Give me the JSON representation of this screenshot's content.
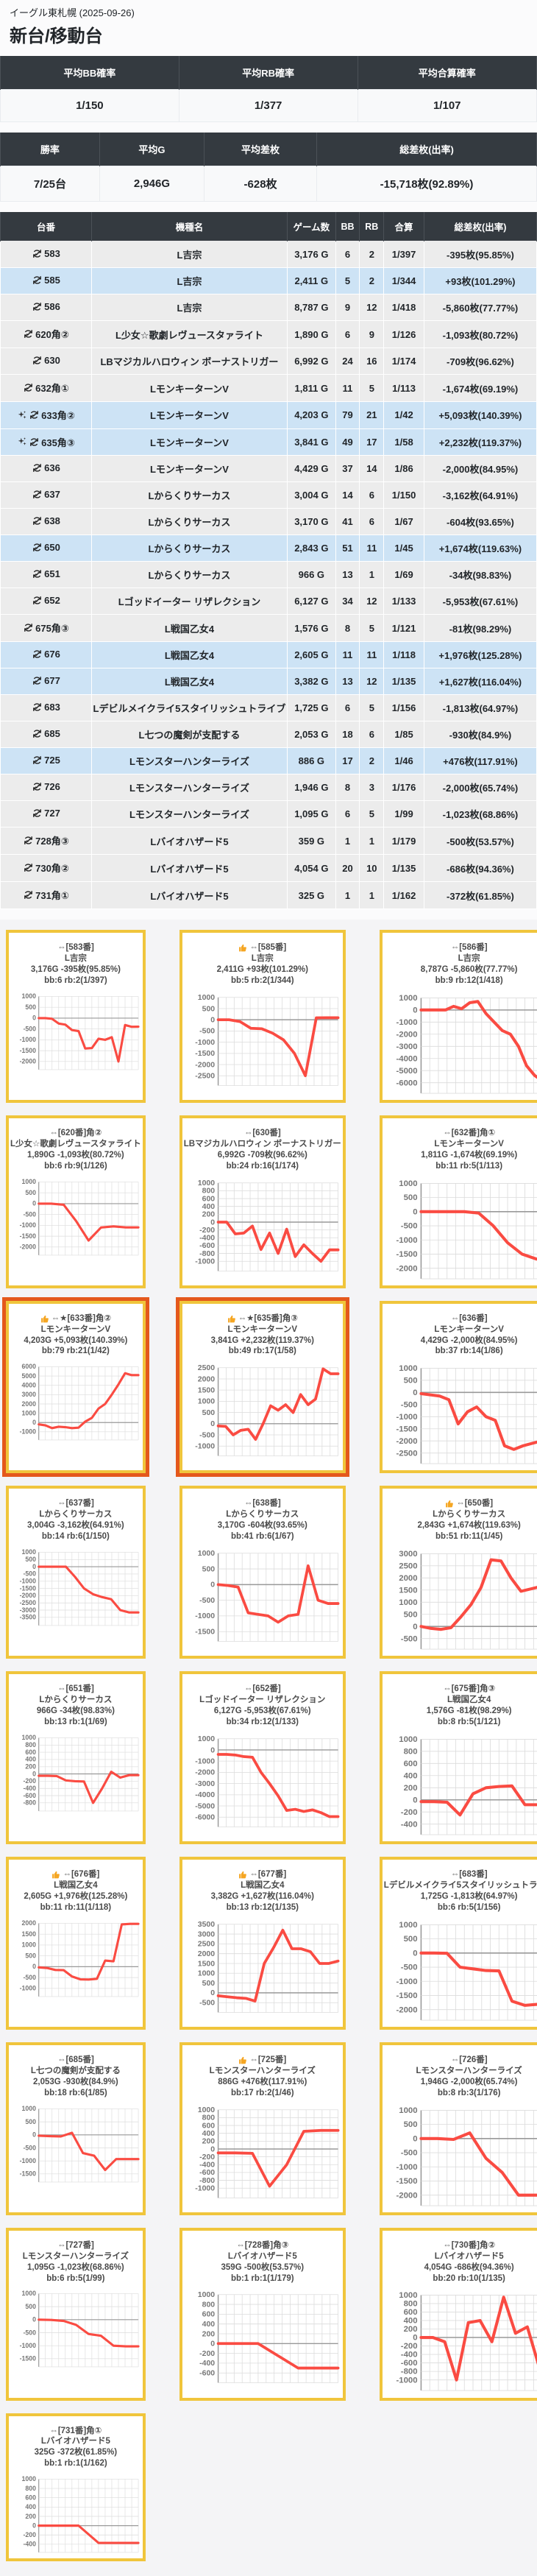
{
  "header": {
    "venue": "イーグル東札幌 (2025-09-26)",
    "title": "新台/移動台"
  },
  "icons": {
    "row_move": "refresh-arrows-icon",
    "row_sparkle": "sparkle-icon",
    "card_thumb": "thumbs-up-icon"
  },
  "colors": {
    "accent_border": "#f0c53c",
    "highlight_border": "#e4581c",
    "line": "#fa4b42",
    "header_bg": "#343a40",
    "row_positive": "#cde3f5",
    "row_negative": "#ececec"
  },
  "summary1": {
    "headers": [
      "平均BB確率",
      "平均RB確率",
      "平均合算確率"
    ],
    "values": [
      "1/150",
      "1/377",
      "1/107"
    ]
  },
  "summary2": {
    "headers": [
      "勝率",
      "平均G",
      "平均差枚",
      "総差枚(出率)"
    ],
    "values": [
      "7/25台",
      "2,946G",
      "-628枚",
      "-15,718枚(92.89%)"
    ]
  },
  "table": {
    "headers": [
      "台番",
      "機種名",
      "ゲーム数",
      "BB",
      "RB",
      "合算",
      "総差枚(出率)"
    ],
    "rows": [
      {
        "num": "583",
        "sparkle": false,
        "model": "L吉宗",
        "games": "3,176 G",
        "bb": "6",
        "rb": "2",
        "gassan": "1/397",
        "diff": "-395枚(95.85%)",
        "positive": false
      },
      {
        "num": "585",
        "sparkle": false,
        "model": "L吉宗",
        "games": "2,411 G",
        "bb": "5",
        "rb": "2",
        "gassan": "1/344",
        "diff": "+93枚(101.29%)",
        "positive": true
      },
      {
        "num": "586",
        "sparkle": false,
        "model": "L吉宗",
        "games": "8,787 G",
        "bb": "9",
        "rb": "12",
        "gassan": "1/418",
        "diff": "-5,860枚(77.77%)",
        "positive": false
      },
      {
        "num": "620角②",
        "sparkle": false,
        "model": "L少女☆歌劇レヴュースタァライト",
        "games": "1,890 G",
        "bb": "6",
        "rb": "9",
        "gassan": "1/126",
        "diff": "-1,093枚(80.72%)",
        "positive": false
      },
      {
        "num": "630",
        "sparkle": false,
        "model": "LBマジカルハロウィン ボーナストリガー",
        "games": "6,992 G",
        "bb": "24",
        "rb": "16",
        "gassan": "1/174",
        "diff": "-709枚(96.62%)",
        "positive": false
      },
      {
        "num": "632角①",
        "sparkle": false,
        "model": "LモンキーターンV",
        "games": "1,811 G",
        "bb": "11",
        "rb": "5",
        "gassan": "1/113",
        "diff": "-1,674枚(69.19%)",
        "positive": false
      },
      {
        "num": "633角②",
        "sparkle": true,
        "model": "LモンキーターンV",
        "games": "4,203 G",
        "bb": "79",
        "rb": "21",
        "gassan": "1/42",
        "diff": "+5,093枚(140.39%)",
        "positive": true
      },
      {
        "num": "635角③",
        "sparkle": true,
        "model": "LモンキーターンV",
        "games": "3,841 G",
        "bb": "49",
        "rb": "17",
        "gassan": "1/58",
        "diff": "+2,232枚(119.37%)",
        "positive": true
      },
      {
        "num": "636",
        "sparkle": false,
        "model": "LモンキーターンV",
        "games": "4,429 G",
        "bb": "37",
        "rb": "14",
        "gassan": "1/86",
        "diff": "-2,000枚(84.95%)",
        "positive": false
      },
      {
        "num": "637",
        "sparkle": false,
        "model": "Lからくりサーカス",
        "games": "3,004 G",
        "bb": "14",
        "rb": "6",
        "gassan": "1/150",
        "diff": "-3,162枚(64.91%)",
        "positive": false
      },
      {
        "num": "638",
        "sparkle": false,
        "model": "Lからくりサーカス",
        "games": "3,170 G",
        "bb": "41",
        "rb": "6",
        "gassan": "1/67",
        "diff": "-604枚(93.65%)",
        "positive": false
      },
      {
        "num": "650",
        "sparkle": false,
        "model": "Lからくりサーカス",
        "games": "2,843 G",
        "bb": "51",
        "rb": "11",
        "gassan": "1/45",
        "diff": "+1,674枚(119.63%)",
        "positive": true
      },
      {
        "num": "651",
        "sparkle": false,
        "model": "Lからくりサーカス",
        "games": "966 G",
        "bb": "13",
        "rb": "1",
        "gassan": "1/69",
        "diff": "-34枚(98.83%)",
        "positive": false
      },
      {
        "num": "652",
        "sparkle": false,
        "model": "Lゴッドイーター リザレクション",
        "games": "6,127 G",
        "bb": "34",
        "rb": "12",
        "gassan": "1/133",
        "diff": "-5,953枚(67.61%)",
        "positive": false
      },
      {
        "num": "675角③",
        "sparkle": false,
        "model": "L戦国乙女4",
        "games": "1,576 G",
        "bb": "8",
        "rb": "5",
        "gassan": "1/121",
        "diff": "-81枚(98.29%)",
        "positive": false
      },
      {
        "num": "676",
        "sparkle": false,
        "model": "L戦国乙女4",
        "games": "2,605 G",
        "bb": "11",
        "rb": "11",
        "gassan": "1/118",
        "diff": "+1,976枚(125.28%)",
        "positive": true
      },
      {
        "num": "677",
        "sparkle": false,
        "model": "L戦国乙女4",
        "games": "3,382 G",
        "bb": "13",
        "rb": "12",
        "gassan": "1/135",
        "diff": "+1,627枚(116.04%)",
        "positive": true
      },
      {
        "num": "683",
        "sparkle": false,
        "model": "Lデビルメイクライ5スタイリッシュトライブ",
        "games": "1,725 G",
        "bb": "6",
        "rb": "5",
        "gassan": "1/156",
        "diff": "-1,813枚(64.97%)",
        "positive": false
      },
      {
        "num": "685",
        "sparkle": false,
        "model": "L七つの魔剣が支配する",
        "games": "2,053 G",
        "bb": "18",
        "rb": "6",
        "gassan": "1/85",
        "diff": "-930枚(84.9%)",
        "positive": false
      },
      {
        "num": "725",
        "sparkle": false,
        "model": "Lモンスターハンターライズ",
        "games": "886 G",
        "bb": "17",
        "rb": "2",
        "gassan": "1/46",
        "diff": "+476枚(117.91%)",
        "positive": true
      },
      {
        "num": "726",
        "sparkle": false,
        "model": "Lモンスターハンターライズ",
        "games": "1,946 G",
        "bb": "8",
        "rb": "3",
        "gassan": "1/176",
        "diff": "-2,000枚(65.74%)",
        "positive": false
      },
      {
        "num": "727",
        "sparkle": false,
        "model": "Lモンスターハンターライズ",
        "games": "1,095 G",
        "bb": "6",
        "rb": "5",
        "gassan": "1/99",
        "diff": "-1,023枚(68.86%)",
        "positive": false
      },
      {
        "num": "728角③",
        "sparkle": false,
        "model": "Lバイオハザード5",
        "games": "359 G",
        "bb": "1",
        "rb": "1",
        "gassan": "1/179",
        "diff": "-500枚(53.57%)",
        "positive": false
      },
      {
        "num": "730角②",
        "sparkle": false,
        "model": "Lバイオハザード5",
        "games": "4,054 G",
        "bb": "20",
        "rb": "10",
        "gassan": "1/135",
        "diff": "-686枚(94.36%)",
        "positive": false
      },
      {
        "num": "731角①",
        "sparkle": false,
        "model": "Lバイオハザード5",
        "games": "325 G",
        "bb": "1",
        "rb": "1",
        "gassan": "1/162",
        "diff": "-372枚(61.85%)",
        "positive": false
      }
    ]
  },
  "cards": [
    {
      "line1": "⇔[583番]",
      "thumb": false,
      "highlight": false,
      "name": "L吉宗",
      "line3": "3,176G -395枚(95.85%)",
      "line4": "bb:6 rb:2(1/397)",
      "ymax": 1000,
      "ymin": -2000,
      "ystep": 500,
      "points": [
        0,
        0,
        -30,
        -250,
        -300,
        -550,
        -600,
        -1400,
        -1380,
        -950,
        -1000,
        -880,
        -2000,
        -320,
        -400,
        -395
      ]
    },
    {
      "line1": "⇔[585番]",
      "thumb": true,
      "highlight": false,
      "name": "L吉宗",
      "line3": "2,411G +93枚(101.29%)",
      "line4": "bb:5 rb:2(1/344)",
      "ymax": 1000,
      "ymin": -2500,
      "ystep": 500,
      "points": [
        0,
        0,
        -80,
        -380,
        -400,
        -600,
        -900,
        -1500,
        -2500,
        90,
        93,
        93
      ]
    },
    {
      "line1": "⇔[586番]",
      "thumb": false,
      "highlight": false,
      "name": "L吉宗",
      "line3": "8,787G -5,860枚(77.77%)",
      "line4": "bb:9 rb:12(1/418)",
      "ymax": 1000,
      "ymin": -6000,
      "ystep": 1000,
      "points": [
        0,
        0,
        0,
        0,
        300,
        100,
        600,
        700,
        -300,
        -1000,
        -1700,
        -2000,
        -3000,
        -4600,
        -5400,
        -5860,
        -5860
      ]
    },
    {
      "line1": "⇔[620番]角②",
      "thumb": false,
      "highlight": false,
      "name": "L少女☆歌劇レヴュースタァライト",
      "line3": "1,890G -1,093枚(80.72%)",
      "line4": "bb:6 rb:9(1/126)",
      "ymax": 1000,
      "ymin": -2000,
      "ystep": 500,
      "points": [
        0,
        0,
        -50,
        -800,
        -1700,
        -1100,
        -1050,
        -1093,
        -1093
      ]
    },
    {
      "line1": "⇔[630番]",
      "thumb": false,
      "highlight": false,
      "name": "LBマジカルハロウィン ボーナストリガー",
      "line3": "6,992G -709枚(96.62%)",
      "line4": "bb:24 rb:16(1/174)",
      "ymax": 1000,
      "ymin": -1000,
      "ystep": 200,
      "points": [
        0,
        0,
        -300,
        -280,
        -100,
        -700,
        -280,
        -800,
        -180,
        -880,
        -580,
        -800,
        -1000,
        -709,
        -709
      ]
    },
    {
      "line1": "⇔[632番]角①",
      "thumb": false,
      "highlight": false,
      "name": "LモンキーターンV",
      "line3": "1,811G -1,674枚(69.19%)",
      "line4": "bb:11 rb:5(1/113)",
      "ymax": 1000,
      "ymin": -2000,
      "ystep": 500,
      "points": [
        0,
        0,
        0,
        0,
        -50,
        -500,
        -1100,
        -1500,
        -1674,
        -1674
      ]
    },
    {
      "line1": "⇔★[633番]角②",
      "thumb": true,
      "highlight": true,
      "name": "LモンキーターンV",
      "line3": "4,203G +5,093枚(140.39%)",
      "line4": "bb:79 rb:21(1/42)",
      "ymax": 6000,
      "ymin": -1000,
      "ystep": 1000,
      "points": [
        -200,
        -300,
        -600,
        -450,
        -500,
        -600,
        -550,
        100,
        500,
        1500,
        2000,
        3000,
        4100,
        5300,
        5093,
        5093
      ]
    },
    {
      "line1": "⇔★[635番]角③",
      "thumb": true,
      "highlight": true,
      "name": "LモンキーターンV",
      "line3": "3,841G +2,232枚(119.37%)",
      "line4": "bb:49 rb:17(1/58)",
      "ymax": 2500,
      "ymin": -1000,
      "ystep": 500,
      "points": [
        -100,
        -120,
        -500,
        -300,
        -250,
        -700,
        0,
        800,
        600,
        850,
        500,
        1300,
        850,
        1100,
        2450,
        2232,
        2232
      ]
    },
    {
      "line1": "⇔[636番]",
      "thumb": false,
      "highlight": false,
      "name": "LモンキーターンV",
      "line3": "4,429G -2,000枚(84.95%)",
      "line4": "bb:37 rb:14(1/86)",
      "ymax": 1000,
      "ymin": -2500,
      "ystep": 500,
      "points": [
        -50,
        -100,
        -150,
        -300,
        -1300,
        -800,
        -600,
        -1000,
        -1150,
        -2200,
        -2350,
        -2200,
        -2100,
        -2000,
        -2000
      ]
    },
    {
      "line1": "⇔[637番]",
      "thumb": false,
      "highlight": false,
      "name": "Lからくりサーカス",
      "line3": "3,004G -3,162枚(64.91%)",
      "line4": "bb:14 rb:6(1/150)",
      "ymax": 1000,
      "ymin": -3500,
      "ystep": 500,
      "points": [
        0,
        0,
        0,
        0,
        -700,
        -1500,
        -1900,
        -2100,
        -2250,
        -3000,
        -3162,
        -3162
      ]
    },
    {
      "line1": "⇔[638番]",
      "thumb": false,
      "highlight": false,
      "name": "Lからくりサーカス",
      "line3": "3,170G -604枚(93.65%)",
      "line4": "bb:41 rb:6(1/67)",
      "ymax": 1000,
      "ymin": -1500,
      "ystep": 500,
      "points": [
        0,
        -30,
        -80,
        -900,
        -950,
        -1000,
        -1200,
        -1000,
        -950,
        600,
        -500,
        -604,
        -604
      ]
    },
    {
      "line1": "⇔[650番]",
      "thumb": true,
      "highlight": false,
      "name": "Lからくりサーカス",
      "line3": "2,843G +1,674枚(119.63%)",
      "line4": "bb:51 rb:11(1/45)",
      "ymax": 3000,
      "ymin": -500,
      "ystep": 500,
      "points": [
        0,
        -80,
        -120,
        -50,
        400,
        900,
        1600,
        2750,
        2700,
        2000,
        1450,
        1550,
        1650,
        1674
      ]
    },
    {
      "line1": "⇔[651番]",
      "thumb": false,
      "highlight": false,
      "name": "Lからくりサーカス",
      "line3": "966G -34枚(98.83%)",
      "line4": "bb:13 rb:1(1/69)",
      "ymax": 1000,
      "ymin": -800,
      "ystep": 200,
      "points": [
        -50,
        -50,
        -60,
        -180,
        -200,
        -210,
        -800,
        -400,
        60,
        -100,
        -34,
        -34
      ]
    },
    {
      "line1": "⇔[652番]",
      "thumb": false,
      "highlight": false,
      "name": "Lゴッドイーター リザレクション",
      "line3": "6,127G -5,953枚(67.61%)",
      "line4": "bb:34 rb:12(1/133)",
      "ymax": 1000,
      "ymin": -6000,
      "ystep": 1000,
      "points": [
        -400,
        -400,
        -450,
        -600,
        -650,
        -2000,
        -3000,
        -4100,
        -5400,
        -5300,
        -5500,
        -5350,
        -5600,
        -5953,
        -5953
      ]
    },
    {
      "line1": "⇔[675番]角③",
      "thumb": false,
      "highlight": false,
      "name": "L戦国乙女4",
      "line3": "1,576G -81枚(98.29%)",
      "line4": "bb:8 rb:5(1/121)",
      "ymax": 1000,
      "ymin": -400,
      "ystep": 200,
      "points": [
        -30,
        -30,
        -40,
        -250,
        100,
        200,
        220,
        230,
        -80,
        -81,
        -81
      ]
    },
    {
      "line1": "⇔[676番]",
      "thumb": true,
      "highlight": false,
      "name": "L戦国乙女4",
      "line3": "2,605G +1,976枚(125.28%)",
      "line4": "bb:11 rb:11(1/118)",
      "ymax": 2000,
      "ymin": -1000,
      "ystep": 500,
      "points": [
        -30,
        -60,
        -150,
        -160,
        -450,
        -580,
        -590,
        -560,
        280,
        250,
        1950,
        1976,
        1976
      ]
    },
    {
      "line1": "⇔[677番]",
      "thumb": true,
      "highlight": false,
      "name": "L戦国乙女4",
      "line3": "3,382G +1,627枚(116.04%)",
      "line4": "bb:13 rb:12(1/135)",
      "ymax": 3500,
      "ymin": -500,
      "ystep": 500,
      "points": [
        -150,
        -200,
        -250,
        -280,
        -420,
        1500,
        2300,
        3200,
        2250,
        2250,
        2100,
        1500,
        1500,
        1627
      ]
    },
    {
      "line1": "⇔[683番]",
      "thumb": false,
      "highlight": false,
      "name": "Lデビルメイクライ5スタイリッシュトライブ",
      "line3": "1,725G -1,813枚(64.97%)",
      "line4": "bb:6 rb:5(1/156)",
      "ymax": 1000,
      "ymin": -2000,
      "ystep": 500,
      "points": [
        0,
        0,
        -10,
        -500,
        -560,
        -620,
        -630,
        -1700,
        -1850,
        -1813,
        -1813
      ]
    },
    {
      "line1": "⇔[685番]",
      "thumb": false,
      "highlight": false,
      "name": "L七つの魔剣が支配する",
      "line3": "2,053G -930枚(84.9%)",
      "line4": "bb:18 rb:6(1/85)",
      "ymax": 1000,
      "ymin": -1500,
      "ystep": 500,
      "points": [
        -30,
        -50,
        -60,
        80,
        -700,
        -800,
        -1350,
        -930,
        -930,
        -930
      ]
    },
    {
      "line1": "⇔[725番]",
      "thumb": true,
      "highlight": false,
      "name": "Lモンスターハンターライズ",
      "line3": "886G +476枚(117.91%)",
      "line4": "bb:17 rb:2(1/46)",
      "ymax": 1000,
      "ymin": -1000,
      "ystep": 200,
      "points": [
        -100,
        -100,
        -110,
        -950,
        -400,
        450,
        476,
        476
      ]
    },
    {
      "line1": "⇔[726番]",
      "thumb": false,
      "highlight": false,
      "name": "Lモンスターハンターライズ",
      "line3": "1,946G -2,000枚(65.74%)",
      "line4": "bb:8 rb:3(1/176)",
      "ymax": 1000,
      "ymin": -2000,
      "ystep": 500,
      "points": [
        0,
        0,
        -30,
        200,
        -700,
        -1200,
        -2000,
        -2000,
        -2000
      ]
    },
    {
      "line1": "⇔[727番]",
      "thumb": false,
      "highlight": false,
      "name": "Lモンスターハンターライズ",
      "line3": "1,095G -1,023枚(68.86%)",
      "line4": "bb:6 rb:5(1/99)",
      "ymax": 1000,
      "ymin": -1500,
      "ystep": 500,
      "points": [
        0,
        -10,
        -50,
        -200,
        -550,
        -620,
        -1000,
        -1023,
        -1023
      ]
    },
    {
      "line1": "⇔[728番]角③",
      "thumb": false,
      "highlight": false,
      "name": "Lバイオハザード5",
      "line3": "359G -500枚(53.57%)",
      "line4": "bb:1 rb:1(1/179)",
      "ymax": 1000,
      "ymin": -600,
      "ystep": 200,
      "points": [
        0,
        0,
        0,
        -250,
        -500,
        -500,
        -500
      ]
    },
    {
      "line1": "⇔[730番]角②",
      "thumb": false,
      "highlight": false,
      "name": "Lバイオハザード5",
      "line3": "4,054G -686枚(94.36%)",
      "line4": "bb:20 rb:10(1/135)",
      "ymax": 1000,
      "ymin": -1000,
      "ystep": 200,
      "points": [
        0,
        0,
        -100,
        -1000,
        350,
        400,
        -100,
        950,
        100,
        250,
        -686,
        -686
      ]
    },
    {
      "line1": "⇔[731番]角①",
      "thumb": false,
      "highlight": false,
      "name": "Lバイオハザード5",
      "line3": "325G -372枚(61.85%)",
      "line4": "bb:1 rb:1(1/162)",
      "ymax": 1000,
      "ymin": -400,
      "ystep": 200,
      "points": [
        0,
        0,
        0,
        -372,
        -372,
        -372
      ]
    }
  ]
}
